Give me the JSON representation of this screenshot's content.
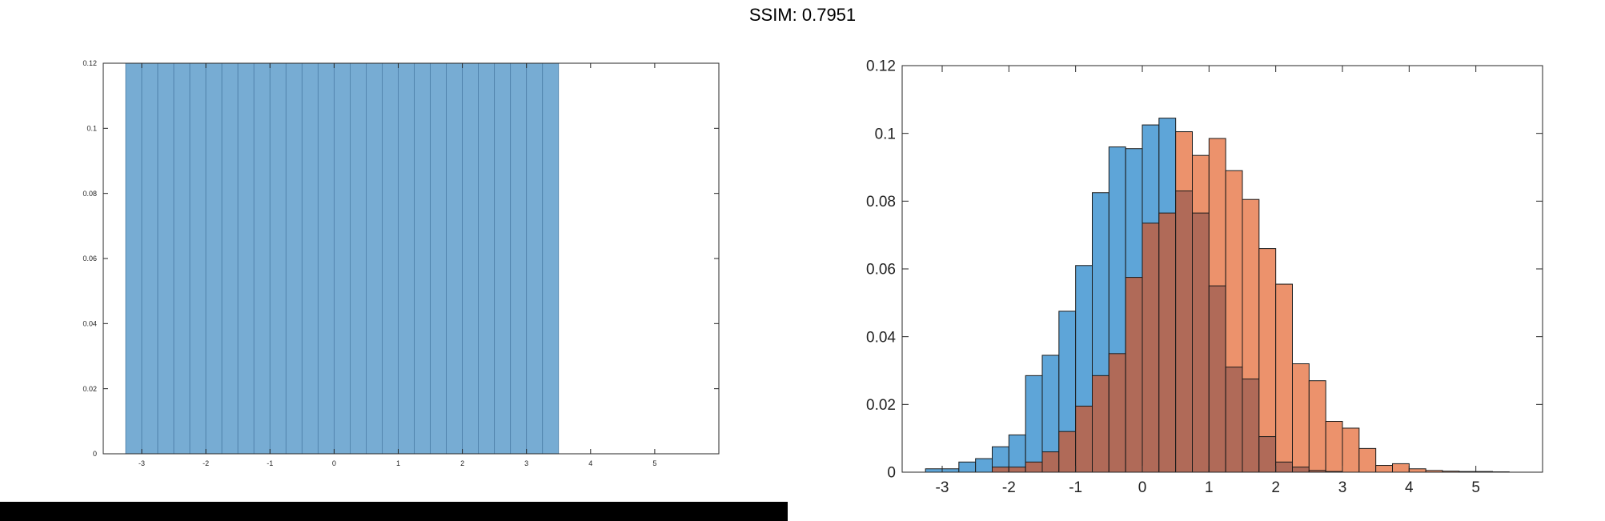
{
  "page": {
    "title": "SSIM: 0.7951"
  },
  "chart_data": [
    {
      "type": "bar",
      "xlim": [
        -3.6,
        6
      ],
      "ylim": [
        0,
        0.12
      ],
      "xticks": [
        "-3",
        "-2",
        "-1",
        "0",
        "1",
        "2",
        "3",
        "4",
        "5"
      ],
      "yticks": [
        "0",
        "0.02",
        "0.04",
        "0.06",
        "0.08",
        "0.1",
        "0.12"
      ],
      "bin_edges": [
        -3.25,
        -3.0,
        -2.75,
        -2.5,
        -2.25,
        -2.0,
        -1.75,
        -1.5,
        -1.25,
        -1.0,
        -0.75,
        -0.5,
        -0.25,
        0.0,
        0.25,
        0.5,
        0.75,
        1.0,
        1.25,
        1.5,
        1.75,
        2.0,
        2.25,
        2.5,
        2.75,
        3.0,
        3.25,
        3.5
      ],
      "values": [
        0.12,
        0.12,
        0.12,
        0.12,
        0.12,
        0.12,
        0.12,
        0.12,
        0.12,
        0.12,
        0.12,
        0.12,
        0.12,
        0.12,
        0.12,
        0.12,
        0.12,
        0.12,
        0.12,
        0.12,
        0.12,
        0.12,
        0.12,
        0.12,
        0.12,
        0.12,
        0.12
      ],
      "color": "#77acd3",
      "edge_color": "#4d7fa8"
    },
    {
      "type": "bar",
      "xlim": [
        -3.6,
        6
      ],
      "ylim": [
        0,
        0.12
      ],
      "xticks": [
        "-3",
        "-2",
        "-1",
        "0",
        "1",
        "2",
        "3",
        "4",
        "5"
      ],
      "yticks": [
        "0",
        "0.02",
        "0.04",
        "0.06",
        "0.08",
        "0.1",
        "0.12"
      ],
      "bin_start": -3.25,
      "bin_width": 0.25,
      "series": [
        {
          "color": "#5ea5d8",
          "values": [
            0.001,
            0.001,
            0.003,
            0.004,
            0.0075,
            0.011,
            0.0285,
            0.0345,
            0.0475,
            0.061,
            0.0825,
            0.096,
            0.0955,
            0.1025,
            0.1045,
            0.083,
            0.0765,
            0.055,
            0.031,
            0.0275,
            0.0105,
            0.003,
            0.0015,
            0.0005,
            0.0002,
            0,
            0,
            0,
            0,
            0,
            0,
            0,
            0,
            0,
            0
          ]
        },
        {
          "color": "#ec926c",
          "values": [
            0,
            0,
            0,
            0,
            0.0015,
            0.0015,
            0.003,
            0.006,
            0.012,
            0.0195,
            0.0285,
            0.035,
            0.0575,
            0.0735,
            0.0765,
            0.1005,
            0.0935,
            0.0985,
            0.089,
            0.0805,
            0.066,
            0.0555,
            0.032,
            0.027,
            0.015,
            0.013,
            0.007,
            0.002,
            0.0025,
            0.001,
            0.0005,
            0.0003,
            0.0002,
            0.0002,
            0.0001
          ]
        }
      ],
      "overlap_color": "#b06a58"
    }
  ]
}
